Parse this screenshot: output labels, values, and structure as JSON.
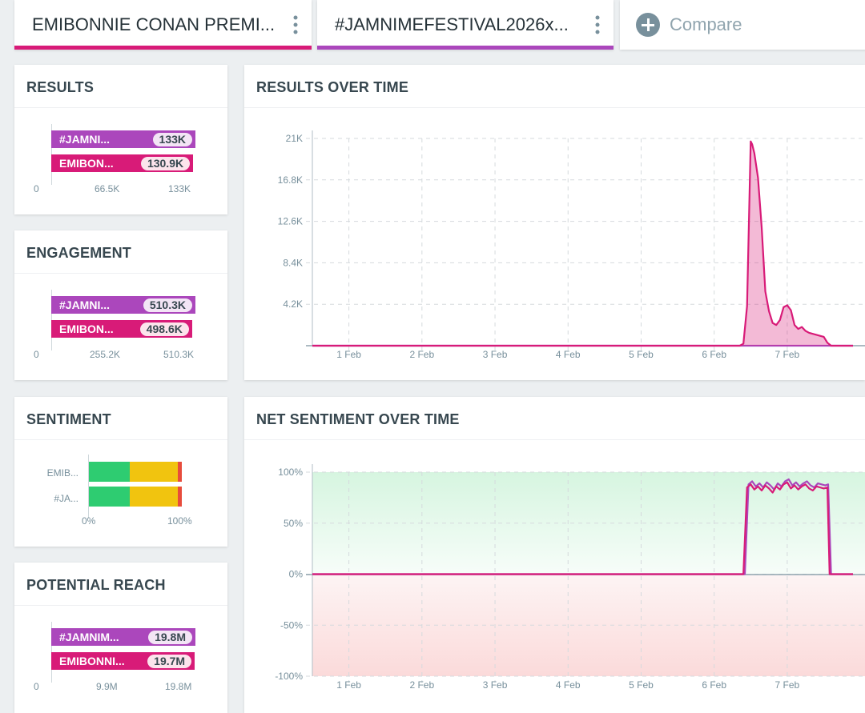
{
  "tabs": [
    {
      "label": "EMIBONNIE CONAN PREMI...",
      "color": "#d81b78"
    },
    {
      "label": "#JAMNIMEFESTIVAL2026x...",
      "color": "#ab47bc"
    }
  ],
  "compare": {
    "label": "Compare"
  },
  "results": {
    "title": "RESULTS",
    "bars": [
      {
        "label": "#JAMNI...",
        "value": "133K",
        "fraction": 1.0
      },
      {
        "label": "EMIBON...",
        "value": "130.9K",
        "fraction": 0.984
      }
    ],
    "axis": [
      "0",
      "66.5K",
      "133K"
    ]
  },
  "engagement": {
    "title": "ENGAGEMENT",
    "bars": [
      {
        "label": "#JAMNI...",
        "value": "510.3K",
        "fraction": 1.0
      },
      {
        "label": "EMIBON...",
        "value": "498.6K",
        "fraction": 0.977
      }
    ],
    "axis": [
      "0",
      "255.2K",
      "510.3K"
    ]
  },
  "sentiment": {
    "title": "SENTIMENT",
    "rows": [
      {
        "label": "EMIB...",
        "positive": 0.44,
        "neutral": 0.52,
        "negative": 0.04
      },
      {
        "label": "#JA...",
        "positive": 0.44,
        "neutral": 0.52,
        "negative": 0.04
      }
    ],
    "axis": [
      "0%",
      "100%"
    ],
    "colors": {
      "positive": "#2ecc71",
      "neutral": "#f1c40f",
      "negative": "#e74c3c"
    }
  },
  "reach": {
    "title": "POTENTIAL REACH",
    "bars": [
      {
        "label": "#JAMNIM...",
        "value": "19.8M",
        "fraction": 1.0
      },
      {
        "label": "EMIBONNI...",
        "value": "19.7M",
        "fraction": 0.995
      }
    ],
    "axis": [
      "0",
      "9.9M",
      "19.8M"
    ]
  },
  "chart_data": [
    {
      "type": "area",
      "title": "RESULTS OVER TIME",
      "x_labels": [
        "1 Feb",
        "2 Feb",
        "3 Feb",
        "4 Feb",
        "5 Feb",
        "6 Feb",
        "7 Feb"
      ],
      "y_ticks": [
        0,
        4200,
        8400,
        12600,
        16800,
        21000
      ],
      "y_tick_labels": [
        "",
        "4.2K",
        "8.4K",
        "12.6K",
        "16.8K",
        "21K"
      ],
      "ylim": [
        0,
        21000
      ],
      "xlim": [
        0.5,
        7.9
      ],
      "series": [
        {
          "name": "EMIBONNIE",
          "color": "#d81b78",
          "x": [
            0.5,
            6.35,
            6.4,
            6.45,
            6.48,
            6.5,
            6.52,
            6.55,
            6.6,
            6.65,
            6.7,
            6.75,
            6.8,
            6.85,
            6.9,
            6.95,
            7.0,
            7.05,
            7.1,
            7.15,
            7.2,
            7.25,
            7.3,
            7.4,
            7.5,
            7.55,
            7.6,
            7.9
          ],
          "y": [
            0,
            0,
            200,
            4000,
            14000,
            20700,
            20400,
            19500,
            17000,
            12000,
            5500,
            3500,
            2300,
            2100,
            2600,
            3900,
            4100,
            3600,
            2100,
            1700,
            1900,
            1500,
            1300,
            1100,
            900,
            300,
            0,
            0
          ]
        },
        {
          "name": "#JAMNIMEFESTIVAL2026",
          "color": "#ab47bc",
          "x": [
            0.5,
            7.9
          ],
          "y": [
            0,
            0
          ]
        }
      ]
    },
    {
      "type": "line",
      "title": "NET SENTIMENT OVER TIME",
      "x_labels": [
        "1 Feb",
        "2 Feb",
        "3 Feb",
        "4 Feb",
        "5 Feb",
        "6 Feb",
        "7 Feb"
      ],
      "y_ticks": [
        -100,
        -50,
        0,
        50,
        100
      ],
      "y_tick_labels": [
        "-100%",
        "-50%",
        "0%",
        "50%",
        "100%"
      ],
      "ylim": [
        -100,
        100
      ],
      "xlim": [
        0.5,
        7.9
      ],
      "series": [
        {
          "name": "EMIBONNIE",
          "color": "#d81b78",
          "x": [
            0.5,
            6.4,
            6.45,
            6.5,
            6.55,
            6.6,
            6.65,
            6.7,
            6.75,
            6.8,
            6.85,
            6.9,
            6.95,
            7.0,
            7.05,
            7.1,
            7.15,
            7.2,
            7.25,
            7.3,
            7.35,
            7.4,
            7.45,
            7.5,
            7.55,
            7.58,
            7.6,
            7.9
          ],
          "y": [
            0,
            0,
            85,
            88,
            83,
            86,
            82,
            87,
            84,
            80,
            86,
            83,
            88,
            90,
            84,
            87,
            83,
            86,
            88,
            84,
            82,
            86,
            85,
            84,
            85,
            0,
            0,
            0
          ]
        },
        {
          "name": "#JAMNIMEFESTIVAL2026",
          "color": "#ab47bc",
          "x": [
            0.5,
            6.42,
            6.47,
            6.52,
            6.57,
            6.62,
            6.67,
            6.72,
            6.77,
            6.82,
            6.87,
            6.92,
            6.97,
            7.02,
            7.07,
            7.12,
            7.17,
            7.22,
            7.27,
            7.32,
            7.37,
            7.42,
            7.47,
            7.52,
            7.56,
            7.6,
            7.62,
            7.9
          ],
          "y": [
            0,
            0,
            88,
            91,
            86,
            89,
            85,
            90,
            87,
            83,
            89,
            86,
            91,
            93,
            87,
            90,
            86,
            89,
            91,
            87,
            85,
            89,
            88,
            87,
            88,
            0,
            0,
            0
          ]
        }
      ]
    }
  ]
}
